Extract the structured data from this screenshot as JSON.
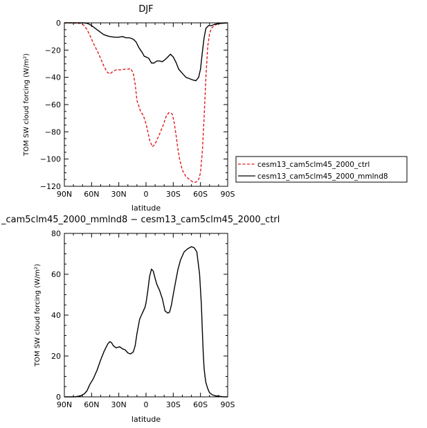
{
  "chart_data": [
    {
      "type": "line",
      "title": "DJF",
      "xlabel": "latitude",
      "ylabel": "TOM SW cloud forcing (W/m²)",
      "xlim": [
        90,
        -90
      ],
      "ylim": [
        -120,
        0
      ],
      "x_ticks": [
        {
          "value": 90,
          "label": "90N"
        },
        {
          "value": 60,
          "label": "60N"
        },
        {
          "value": 30,
          "label": "30N"
        },
        {
          "value": 0,
          "label": "0"
        },
        {
          "value": -30,
          "label": "30S"
        },
        {
          "value": -60,
          "label": "60S"
        },
        {
          "value": -90,
          "label": "90S"
        }
      ],
      "y_ticks": [
        0,
        -20,
        -40,
        -60,
        -80,
        -100,
        -120
      ],
      "legend": "right",
      "series": [
        {
          "name": "cesm13_cam5clm45_2000_ctrl",
          "color": "#e31a1c",
          "dash": "dashed",
          "x": [
            90,
            80,
            72,
            68,
            65,
            62,
            58,
            52,
            47,
            43,
            40,
            37,
            33,
            27,
            23,
            20,
            17,
            14,
            12,
            10,
            6,
            3,
            0,
            -2,
            -4,
            -7,
            -10,
            -12,
            -14,
            -16,
            -19,
            -22,
            -25,
            -27,
            -29,
            -31,
            -33,
            -35,
            -37,
            -40,
            -44,
            -48,
            -52,
            -55,
            -58,
            -60,
            -62,
            -64,
            -66,
            -68,
            -70,
            -72,
            -75,
            -80,
            -85,
            -90
          ],
          "y": [
            0,
            0,
            -0.5,
            -2,
            -5,
            -9,
            -15,
            -23,
            -31,
            -36,
            -37.5,
            -36,
            -34.5,
            -34.5,
            -34,
            -34,
            -33.5,
            -37,
            -45,
            -57,
            -65,
            -68,
            -74,
            -80,
            -86,
            -91,
            -89,
            -86,
            -83,
            -80,
            -75,
            -69,
            -66,
            -66,
            -67,
            -73,
            -82,
            -92,
            -100,
            -108,
            -113,
            -115,
            -117,
            -117,
            -115,
            -110,
            -95,
            -70,
            -40,
            -17,
            -8,
            -4,
            -2,
            -0.5,
            0,
            0
          ]
        },
        {
          "name": "cesm13_cam5clm45_2000_mmlnd8",
          "color": "#000000",
          "dash": "solid",
          "x": [
            90,
            75,
            68,
            64,
            60,
            56,
            52,
            47,
            43,
            40,
            35,
            30,
            26,
            22,
            18,
            14,
            11,
            8,
            6,
            4,
            2,
            0,
            -3,
            -6,
            -9,
            -12,
            -15,
            -18,
            -21,
            -24,
            -27,
            -30,
            -33,
            -36,
            -40,
            -44,
            -48,
            -52,
            -55,
            -58,
            -60,
            -62,
            -64,
            -66,
            -69,
            -72,
            -76,
            -80,
            -90
          ],
          "y": [
            0,
            0,
            0,
            -0.5,
            -2,
            -4,
            -6,
            -8.5,
            -9.5,
            -10,
            -10.5,
            -10.5,
            -10,
            -11,
            -11,
            -12,
            -14,
            -18,
            -20,
            -22,
            -24.5,
            -25,
            -26,
            -29.5,
            -29.5,
            -28,
            -28,
            -28.5,
            -27,
            -25,
            -23,
            -25,
            -29,
            -34,
            -37,
            -40,
            -41,
            -42,
            -42.5,
            -40,
            -34,
            -22,
            -11,
            -4,
            -2,
            -2,
            -1,
            -0.5,
            0
          ]
        }
      ]
    },
    {
      "type": "line",
      "title": "_cam5clm45_2000_mmlnd8 − cesm13_cam5clm45_2000_ctrl",
      "xlabel": "latitude",
      "ylabel": "TOM SW cloud forcing (W/m²)",
      "xlim": [
        90,
        -90
      ],
      "ylim": [
        0,
        80
      ],
      "x_ticks": [
        {
          "value": 90,
          "label": "90N"
        },
        {
          "value": 60,
          "label": "60N"
        },
        {
          "value": 30,
          "label": "30N"
        },
        {
          "value": 0,
          "label": "0"
        },
        {
          "value": -30,
          "label": "30S"
        },
        {
          "value": -60,
          "label": "60S"
        },
        {
          "value": -90,
          "label": "90S"
        }
      ],
      "y_ticks": [
        0,
        20,
        40,
        60,
        80
      ],
      "series": [
        {
          "name": "",
          "color": "#000000",
          "dash": "solid",
          "x": [
            90,
            78,
            72,
            68,
            65,
            62,
            58,
            54,
            50,
            46,
            42,
            40,
            38,
            36,
            33,
            29,
            26,
            23,
            20,
            17,
            14,
            12,
            10,
            7,
            5,
            3,
            1,
            0,
            -2,
            -4,
            -6,
            -8,
            -10,
            -12,
            -15,
            -18,
            -21,
            -24,
            -26,
            -28,
            -30,
            -32,
            -35,
            -38,
            -42,
            -46,
            -50,
            -53,
            -56,
            -59,
            -61,
            -62,
            -63,
            -64,
            -65,
            -66,
            -68,
            -70,
            -73,
            -76,
            -80,
            -85,
            -90
          ],
          "y": [
            0,
            0,
            0.5,
            1.5,
            3,
            6,
            9,
            13,
            18,
            22.5,
            26,
            27,
            26.5,
            25,
            24,
            24.5,
            23.5,
            23,
            21.5,
            21,
            22,
            25,
            31,
            38,
            40,
            42,
            44,
            46,
            52,
            59,
            62.5,
            61.5,
            58,
            55,
            52,
            48,
            42,
            41,
            41.5,
            45,
            50,
            55,
            62,
            67,
            71,
            72.5,
            73.5,
            73,
            71,
            60,
            45,
            33,
            22,
            14,
            10,
            7,
            4,
            2,
            1,
            0.5,
            0.3,
            0,
            0
          ]
        }
      ]
    }
  ]
}
